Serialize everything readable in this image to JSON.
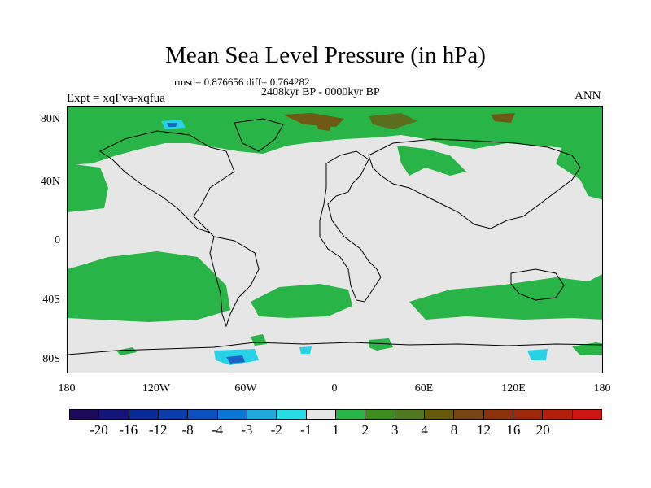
{
  "title": "Mean Sea Level Pressure (in hPa)",
  "stats": "rmsd= 0.876656 diff= 0.764282",
  "period": "2408kyr BP - 0000kyr BP",
  "experiment": "Expt = xqFva-xqfua",
  "season": "ANN",
  "lat_labels": [
    "80N",
    "40N",
    "0",
    "40S",
    "80S"
  ],
  "lon_labels": [
    "180",
    "120W",
    "60W",
    "0",
    "60E",
    "120E",
    "180"
  ],
  "colorbar": {
    "colors": [
      "#1e0a5a",
      "#14147a",
      "#0a2896",
      "#0a3caa",
      "#0a50be",
      "#0a78d2",
      "#1eaadc",
      "#28dce6",
      "#e6e6e6",
      "#28b446",
      "#3c8c1e",
      "#50781e",
      "#645a0a",
      "#784614",
      "#8c320a",
      "#a0280a",
      "#b41e0a",
      "#d21414"
    ],
    "labels": [
      "-20",
      "-16",
      "-12",
      "-8",
      "-4",
      "-3",
      "-2",
      "-1",
      "1",
      "2",
      "3",
      "4",
      "8",
      "12",
      "16",
      "20"
    ]
  },
  "map_colors": {
    "background": "#e6e6e6",
    "green": "#28b446",
    "olive": "#5a6e1e",
    "brown": "#6e5a14",
    "cyan": "#28d2e6",
    "blue": "#1e64c8"
  }
}
